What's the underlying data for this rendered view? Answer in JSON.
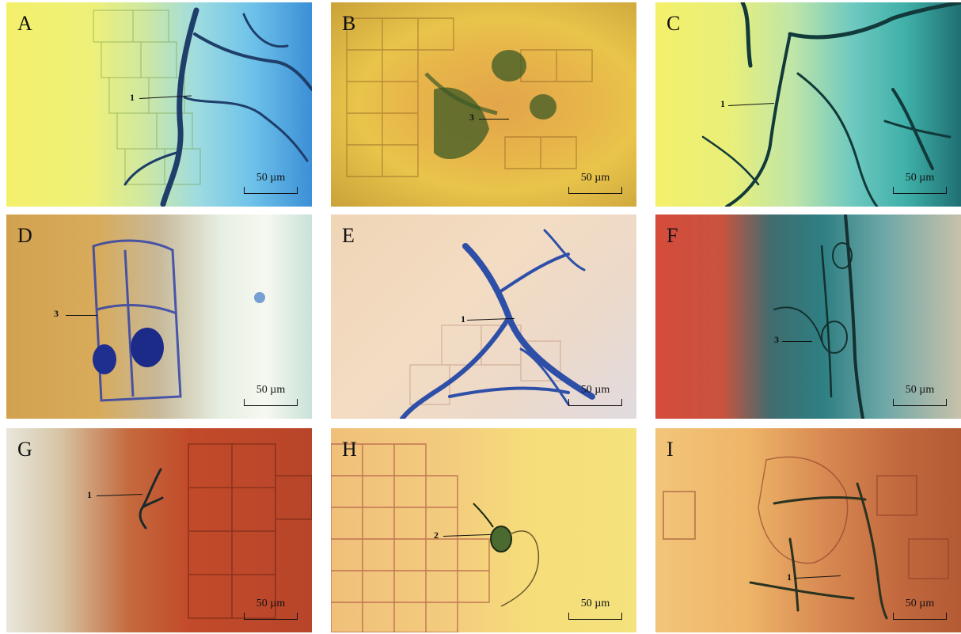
{
  "panels": [
    {
      "letter": "A",
      "callout": "1",
      "scale": "50 µm"
    },
    {
      "letter": "B",
      "callout": "3",
      "scale": "50 µm"
    },
    {
      "letter": "C",
      "callout": "1",
      "scale": "50 µm"
    },
    {
      "letter": "D",
      "callout": "3",
      "scale": "50 µm"
    },
    {
      "letter": "E",
      "callout": "1",
      "scale": "50 µm"
    },
    {
      "letter": "F",
      "callout": "3",
      "scale": "50 µm"
    },
    {
      "letter": "G",
      "callout": "1",
      "scale": "50 µm"
    },
    {
      "letter": "H",
      "callout": "2",
      "scale": "50 µm"
    },
    {
      "letter": "I",
      "callout": "1",
      "scale": "50 µm"
    }
  ],
  "colors": {
    "hyphae": "#1f3f6a",
    "stain_blue": "#2d5fb3",
    "text": "#111111"
  }
}
